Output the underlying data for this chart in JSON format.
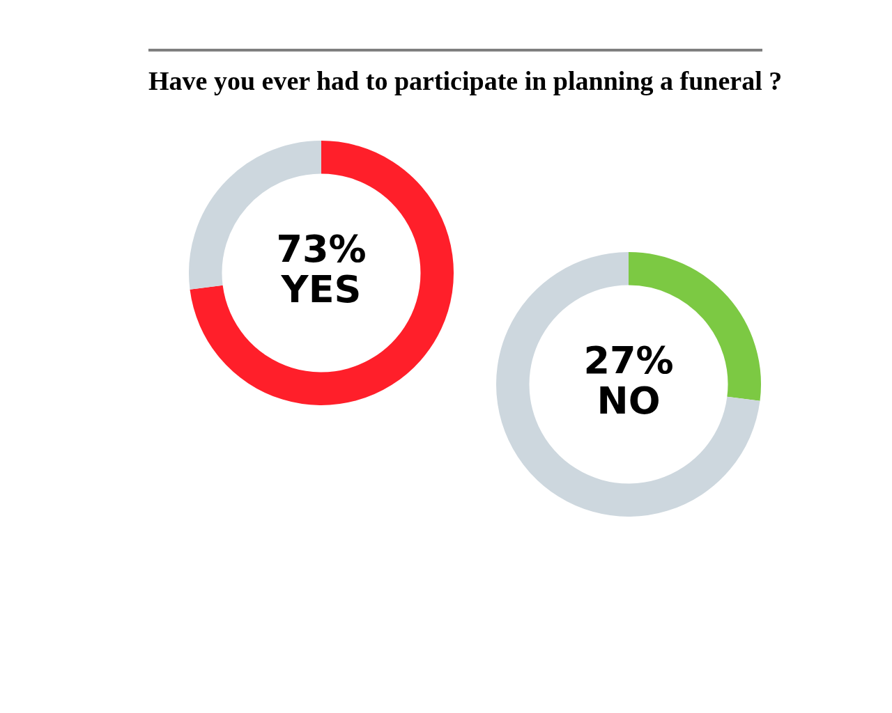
{
  "chart_data": [
    {
      "type": "donut",
      "title": "Have you ever had to participate in planning a funeral ?",
      "categories": [
        "YES",
        null
      ],
      "values": [
        73,
        27
      ],
      "colors": [
        "#ff1f2a",
        "#cdd7de"
      ],
      "value_labels": [
        "73%",
        null
      ],
      "legend": false
    },
    {
      "type": "donut",
      "categories": [
        "NO",
        null
      ],
      "values": [
        27,
        73
      ],
      "colors": [
        "#7cc943",
        "#cdd7de"
      ],
      "value_labels": [
        "27%",
        null
      ],
      "legend": false
    }
  ]
}
